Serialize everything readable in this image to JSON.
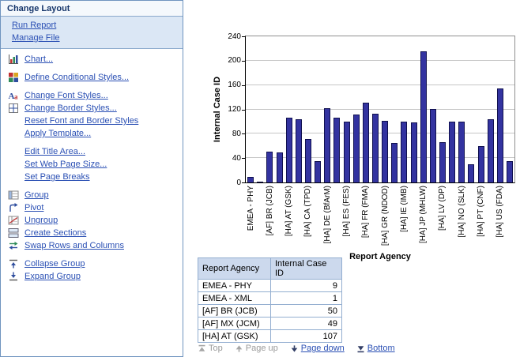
{
  "sidebar": {
    "title": "Change Layout",
    "top_links": [
      "Run Report",
      "Manage File"
    ],
    "groups": [
      {
        "items": [
          {
            "label": "Chart...",
            "icon": "chart-icon"
          }
        ]
      },
      {
        "items": [
          {
            "label": "Define Conditional Styles...",
            "icon": "conditional-styles-icon"
          }
        ]
      },
      {
        "items": [
          {
            "label": "Change Font Styles...",
            "icon": "font-styles-icon"
          },
          {
            "label": "Change Border Styles...",
            "icon": "border-styles-icon"
          },
          {
            "label": "Reset Font and Border Styles",
            "icon": ""
          },
          {
            "label": "Apply Template...",
            "icon": ""
          }
        ]
      },
      {
        "items": [
          {
            "label": "Edit Title Area...",
            "icon": ""
          },
          {
            "label": "Set Web Page Size...",
            "icon": ""
          },
          {
            "label": "Set Page Breaks",
            "icon": ""
          }
        ]
      },
      {
        "items": [
          {
            "label": "Group",
            "icon": "group-icon"
          },
          {
            "label": "Pivot",
            "icon": "pivot-icon"
          },
          {
            "label": "Ungroup",
            "icon": "ungroup-icon"
          },
          {
            "label": "Create Sections",
            "icon": "create-sections-icon"
          },
          {
            "label": "Swap Rows and Columns",
            "icon": "swap-rows-columns-icon"
          }
        ]
      },
      {
        "items": [
          {
            "label": "Collapse Group",
            "icon": "collapse-group-icon"
          },
          {
            "label": "Expand Group",
            "icon": "expand-group-icon"
          }
        ]
      }
    ]
  },
  "chart_data": {
    "type": "bar",
    "title": "",
    "xlabel": "Report Agency",
    "ylabel": "Internal Case ID",
    "ylim": [
      0,
      240
    ],
    "yticks": [
      0,
      40,
      80,
      120,
      160,
      200,
      240
    ],
    "grid": true,
    "legend": false,
    "bar_color": "#3333a0",
    "categories": [
      "EMEA - PHY",
      "",
      "[AF] BR (JCB)",
      "",
      "[HA] AT (GSK)",
      "",
      "[HA] CA (TPD)",
      "",
      "[HA] DE (BfArM)",
      "",
      "[HA] ES (FES)",
      "",
      "[HA] FR (FMA)",
      "",
      "[HA] GR (NDOD)",
      "",
      "[HA] IE (IMB)",
      "",
      "[HA] JP (MHLW)",
      "",
      "[HA] LV (DP)",
      "",
      "[HA] NO (SLK)",
      "",
      "[HA] PT (CNF)",
      "",
      "[HA] US (FDA)",
      ""
    ],
    "values": [
      9,
      1,
      50,
      49,
      107,
      104,
      72,
      35,
      122,
      106,
      100,
      111,
      131,
      113,
      101,
      65,
      100,
      98,
      215,
      121,
      66,
      100,
      100,
      30,
      60,
      104,
      155,
      35
    ]
  },
  "table": {
    "columns": [
      "Report Agency",
      "Internal Case ID"
    ],
    "rows": [
      [
        "EMEA - PHY",
        "9"
      ],
      [
        "EMEA - XML",
        "1"
      ],
      [
        "[AF] BR (JCB)",
        "50"
      ],
      [
        "[AF] MX (JCM)",
        "49"
      ],
      [
        "[HA] AT (GSK)",
        "107"
      ]
    ]
  },
  "pagination": {
    "items": [
      {
        "label": "Top",
        "icon": "top-icon",
        "enabled": false
      },
      {
        "label": "Page up",
        "icon": "page-up-icon",
        "enabled": false
      },
      {
        "label": "Page down",
        "icon": "page-down-icon",
        "enabled": true
      },
      {
        "label": "Bottom",
        "icon": "bottom-icon",
        "enabled": true
      }
    ]
  },
  "colors": {
    "link": "#2b50b4",
    "panel_border": "#6f94bf",
    "toplinks_bg": "#dbe7f5",
    "bar": "#3333a0",
    "table_header_bg": "#ccd9ed",
    "disabled_text": "#9a9a9a"
  }
}
